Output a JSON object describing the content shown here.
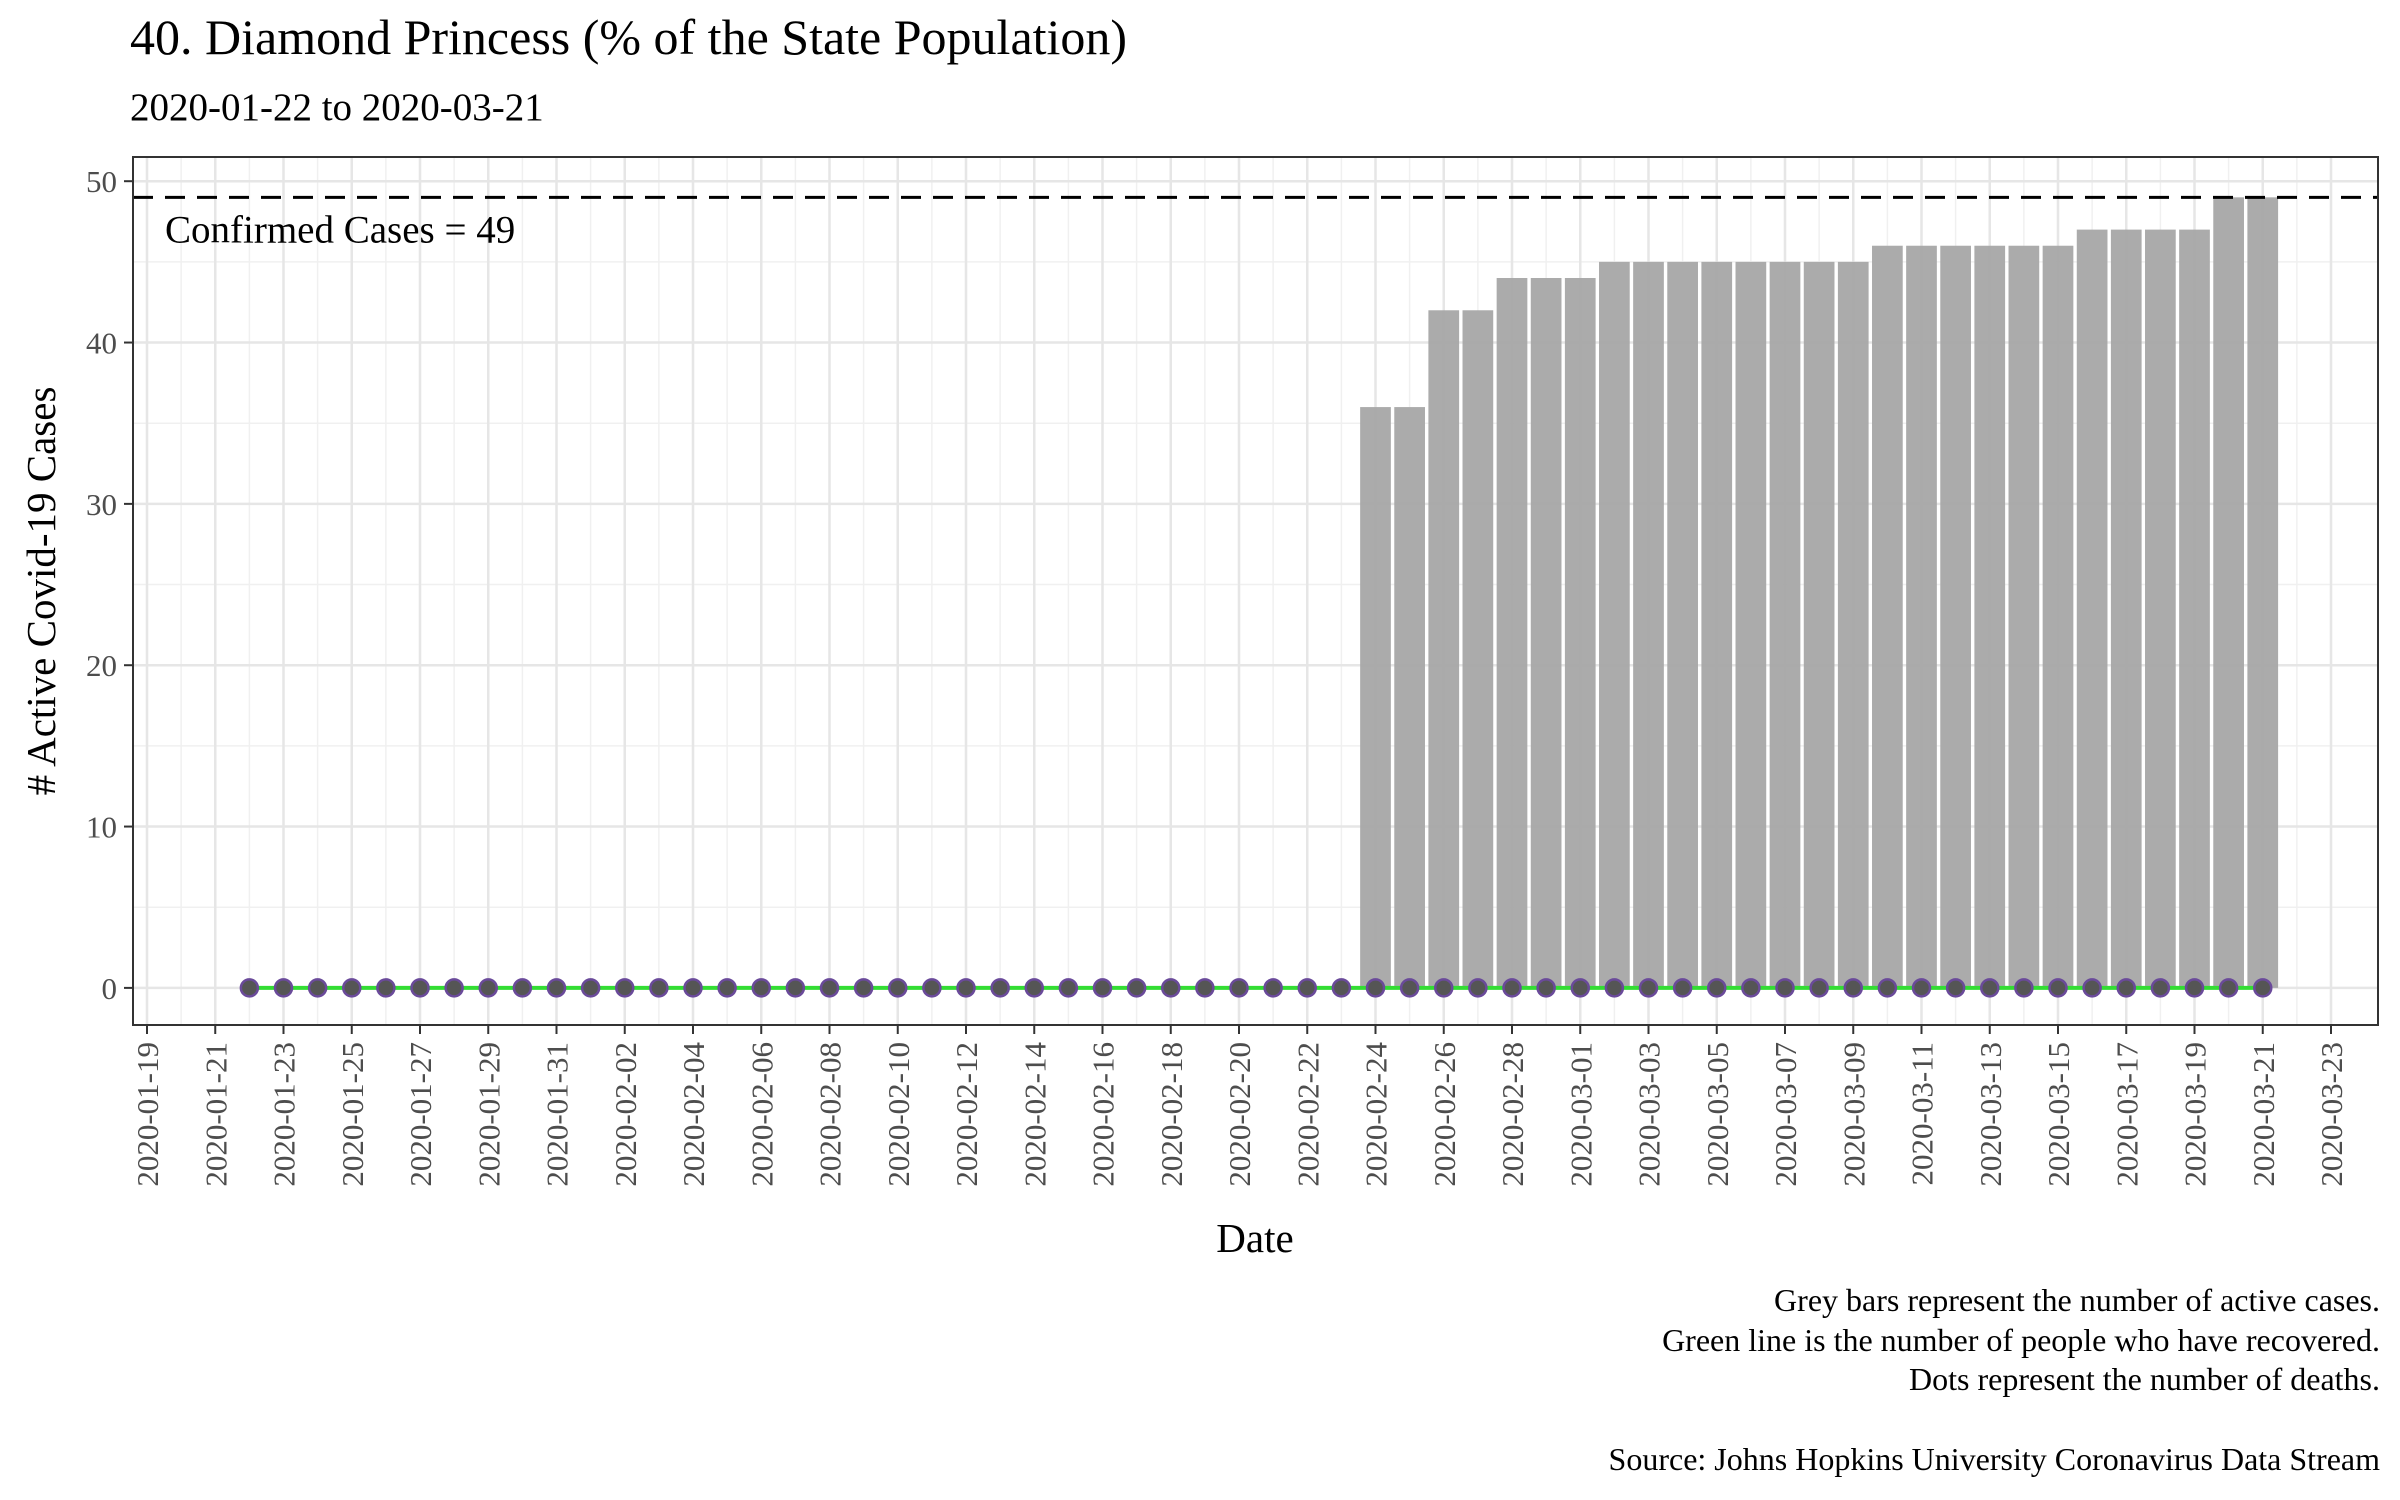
{
  "chart_data": {
    "type": "bar",
    "title": "40. Diamond Princess (% of the State Population)",
    "subtitle": "2020-01-22 to 2020-03-21",
    "xlabel": "Date",
    "ylabel": "# Active Covid-19 Cases",
    "ylim": [
      -2.3,
      51.5
    ],
    "y_ticks": [
      0,
      10,
      20,
      30,
      40,
      50
    ],
    "x_start": "2020-01-22",
    "x_tick_labels": [
      "2020-01-19",
      "2020-01-21",
      "2020-01-23",
      "2020-01-25",
      "2020-01-27",
      "2020-01-29",
      "2020-01-31",
      "2020-02-02",
      "2020-02-04",
      "2020-02-06",
      "2020-02-08",
      "2020-02-10",
      "2020-02-12",
      "2020-02-14",
      "2020-02-16",
      "2020-02-18",
      "2020-02-20",
      "2020-02-22",
      "2020-02-24",
      "2020-02-26",
      "2020-02-28",
      "2020-03-01",
      "2020-03-03",
      "2020-03-05",
      "2020-03-07",
      "2020-03-09",
      "2020-03-11",
      "2020-03-13",
      "2020-03-15",
      "2020-03-17",
      "2020-03-19",
      "2020-03-21",
      "2020-03-23"
    ],
    "active_cases": [
      0,
      0,
      0,
      0,
      0,
      0,
      0,
      0,
      0,
      0,
      0,
      0,
      0,
      0,
      0,
      0,
      0,
      0,
      0,
      0,
      0,
      0,
      0,
      0,
      0,
      0,
      0,
      0,
      0,
      0,
      0,
      0,
      0,
      36,
      36,
      42,
      42,
      44,
      44,
      44,
      45,
      45,
      45,
      45,
      45,
      45,
      45,
      45,
      46,
      46,
      46,
      46,
      46,
      46,
      47,
      47,
      47,
      47,
      49,
      49
    ],
    "recovered": [
      0,
      0,
      0,
      0,
      0,
      0,
      0,
      0,
      0,
      0,
      0,
      0,
      0,
      0,
      0,
      0,
      0,
      0,
      0,
      0,
      0,
      0,
      0,
      0,
      0,
      0,
      0,
      0,
      0,
      0,
      0,
      0,
      0,
      0,
      0,
      0,
      0,
      0,
      0,
      0,
      0,
      0,
      0,
      0,
      0,
      0,
      0,
      0,
      0,
      0,
      0,
      0,
      0,
      0,
      0,
      0,
      0,
      0,
      0,
      0
    ],
    "deaths": [
      0,
      0,
      0,
      0,
      0,
      0,
      0,
      0,
      0,
      0,
      0,
      0,
      0,
      0,
      0,
      0,
      0,
      0,
      0,
      0,
      0,
      0,
      0,
      0,
      0,
      0,
      0,
      0,
      0,
      0,
      0,
      0,
      0,
      0,
      0,
      0,
      0,
      0,
      0,
      0,
      0,
      0,
      0,
      0,
      0,
      0,
      0,
      0,
      0,
      0,
      0,
      0,
      0,
      0,
      0,
      0,
      0,
      0,
      0,
      0
    ],
    "reference_line": {
      "value": 49,
      "label": "Confirmed Cases = 49"
    },
    "grid": true,
    "colors": {
      "bars": "#a6a6a6",
      "recovered_line": "#33dd33",
      "death_dots": "#555555",
      "death_dot_stroke": "#6a4a9a"
    }
  },
  "caption": {
    "line1": "Grey bars represent the number of active cases.",
    "line2": "Green line is the number of people who have recovered.",
    "line3": "Dots represent the number of deaths.",
    "source": "Source: Johns Hopkins University Coronavirus Data Stream"
  }
}
